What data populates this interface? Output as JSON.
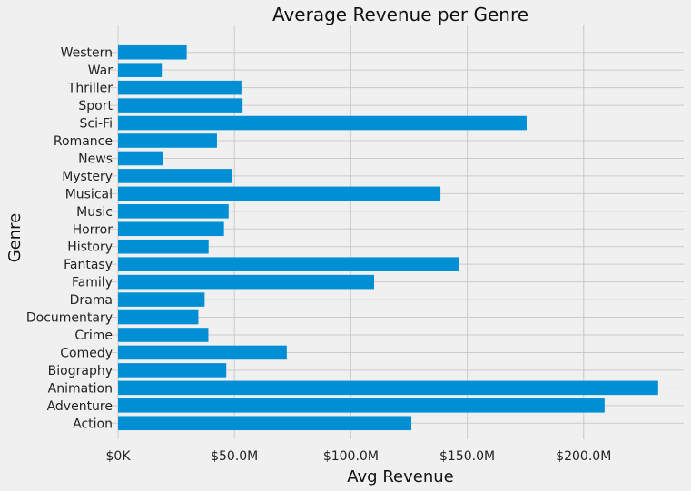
{
  "chart_data": {
    "type": "bar",
    "orientation": "horizontal",
    "title": "Average Revenue per Genre",
    "xlabel": "Avg Revenue",
    "ylabel": "Genre",
    "xlim": [
      0,
      243000000
    ],
    "xticks": [
      {
        "value": 0,
        "label": "$0K"
      },
      {
        "value": 50000000,
        "label": "$50.0M"
      },
      {
        "value": 100000000,
        "label": "$100.0M"
      },
      {
        "value": 150000000,
        "label": "$150.0M"
      },
      {
        "value": 200000000,
        "label": "$200.0M"
      }
    ],
    "categories": [
      "Action",
      "Adventure",
      "Animation",
      "Biography",
      "Comedy",
      "Crime",
      "Documentary",
      "Drama",
      "Family",
      "Fantasy",
      "History",
      "Horror",
      "Music",
      "Musical",
      "Mystery",
      "News",
      "Romance",
      "Sci-Fi",
      "Sport",
      "Thriller",
      "War",
      "Western"
    ],
    "values": [
      126000000,
      209000000,
      232000000,
      46500000,
      72500000,
      38800000,
      34500000,
      37200000,
      110000000,
      146500000,
      38900000,
      45500000,
      47500000,
      138500000,
      48800000,
      19500000,
      42500000,
      175500000,
      53500000,
      53000000,
      18800000,
      29500000
    ],
    "grid": true,
    "bar_color": "#008fd5",
    "background_color": "#f0f0f0"
  }
}
